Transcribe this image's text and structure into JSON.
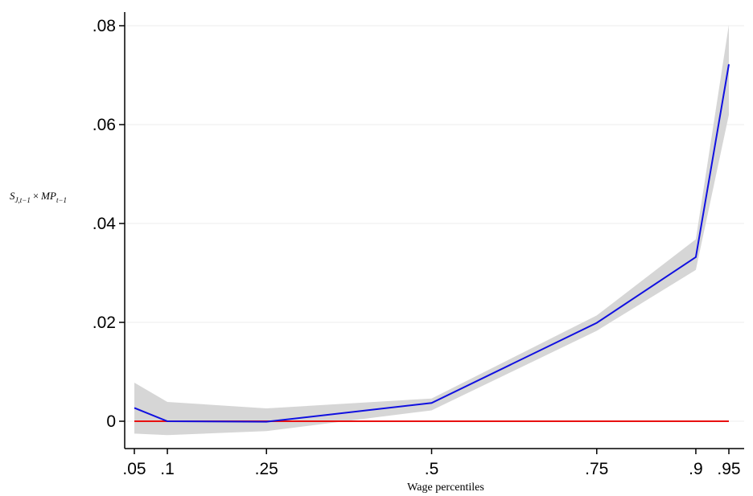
{
  "chart_data": {
    "type": "line",
    "xlabel": "Wage percentiles",
    "ylabel": {
      "s": "S",
      "s_sub": "J,t−1",
      "times": "×",
      "mp": "MP",
      "mp_sub": "t−1"
    },
    "x": [
      0.05,
      0.1,
      0.25,
      0.5,
      0.75,
      0.9,
      0.95
    ],
    "xtick_values": [
      0.05,
      0.1,
      0.25,
      0.5,
      0.75,
      0.9,
      0.95
    ],
    "xtick_labels": [
      ".05",
      ".1",
      ".25",
      ".5",
      ".75",
      ".9",
      ".95"
    ],
    "ytick_values": [
      0,
      0.02,
      0.04,
      0.06,
      0.08
    ],
    "ytick_labels": [
      "0",
      ".02",
      ".04",
      ".06",
      ".08"
    ],
    "xlim": [
      0.05,
      0.95
    ],
    "ylim": [
      0,
      0.08
    ],
    "grid": "horizontal",
    "series": [
      {
        "values": [
          0.0027,
          0.0,
          -0.0001,
          0.0037,
          0.0199,
          0.0332,
          0.0722
        ],
        "ci_lower": [
          -0.0025,
          -0.0028,
          -0.002,
          0.0022,
          0.0183,
          0.0306,
          0.062
        ],
        "ci_upper": [
          0.0078,
          0.0039,
          0.0026,
          0.0046,
          0.0214,
          0.0368,
          0.0802
        ],
        "color": "#1010e0",
        "band_color": "#d6d6d6"
      }
    ],
    "reference_line": {
      "y": 0,
      "color": "#e81010"
    }
  }
}
